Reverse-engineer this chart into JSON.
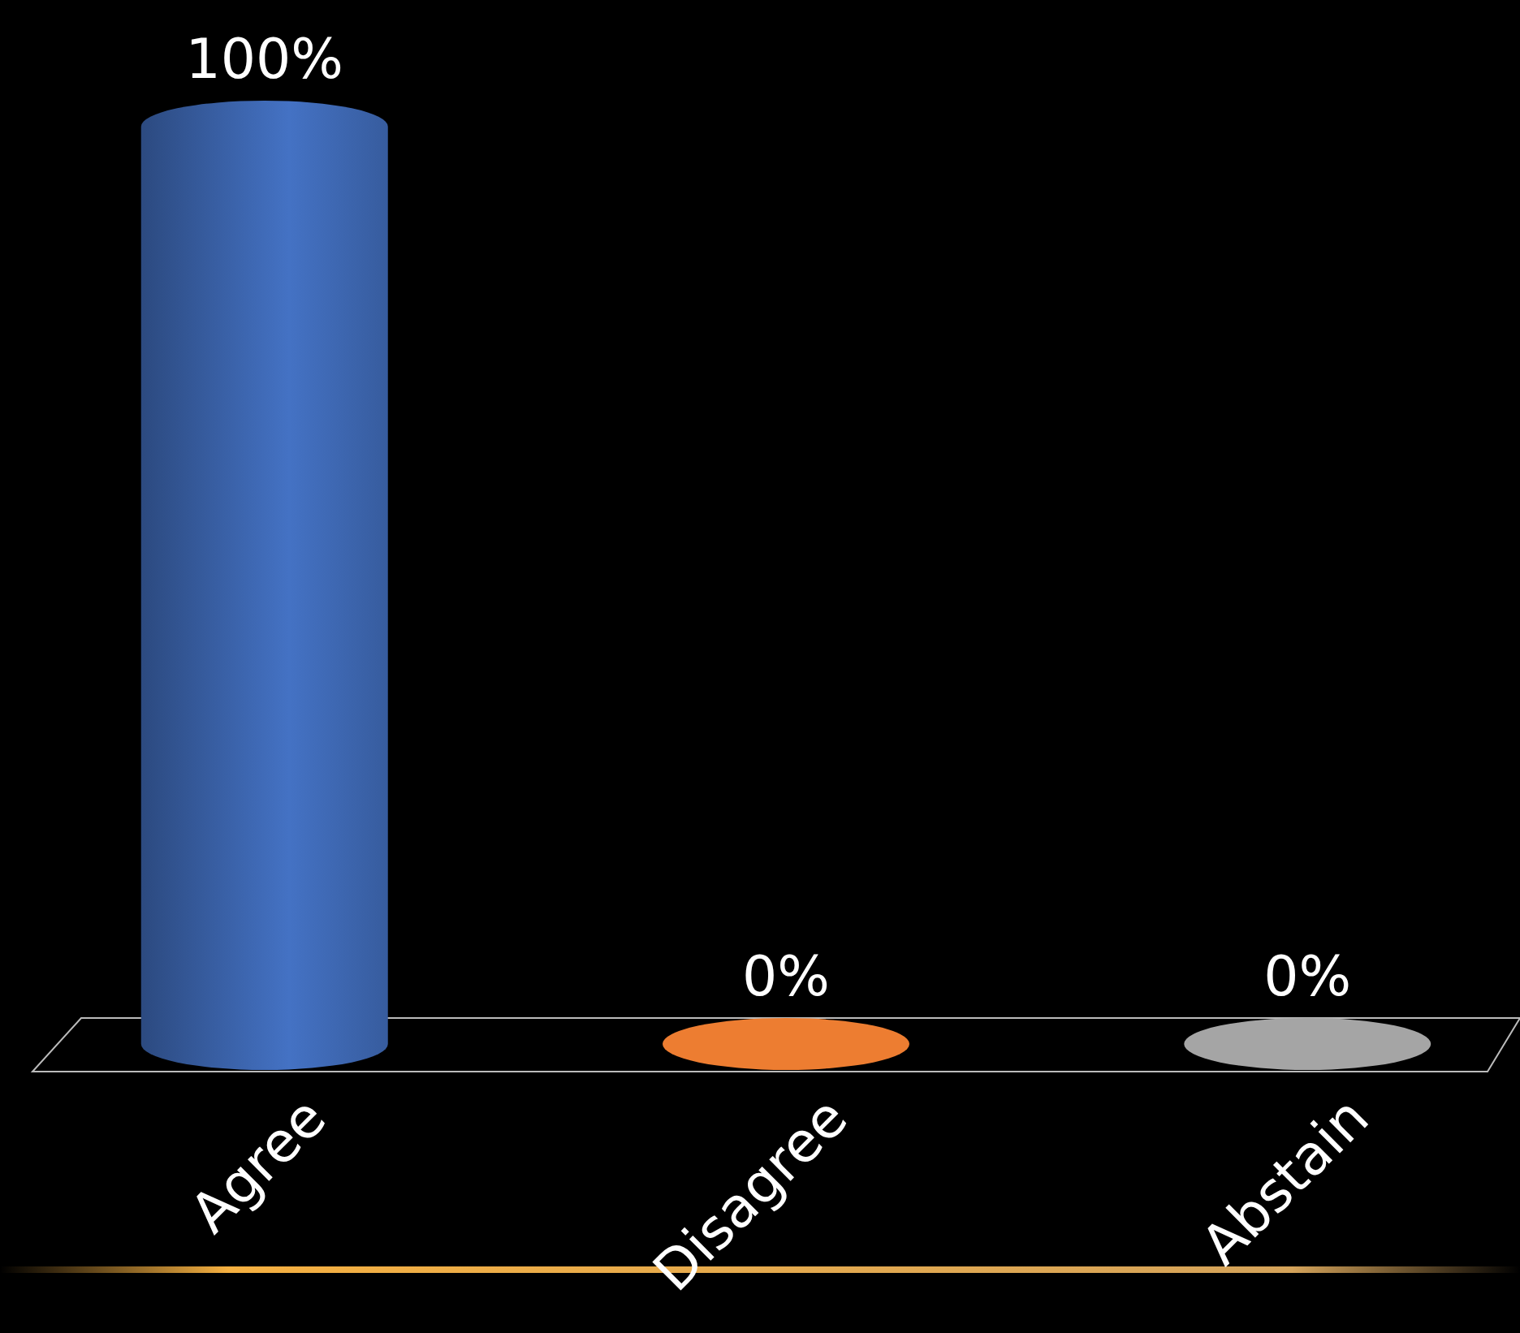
{
  "chart_data": {
    "type": "bar",
    "categories": [
      "Agree",
      "Disagree",
      "Abstain"
    ],
    "values": [
      100,
      0,
      0
    ],
    "colors": [
      "#4472c4",
      "#ed7d31",
      "#a5a5a5"
    ],
    "value_labels": [
      "100%",
      "0%",
      "0%"
    ]
  }
}
